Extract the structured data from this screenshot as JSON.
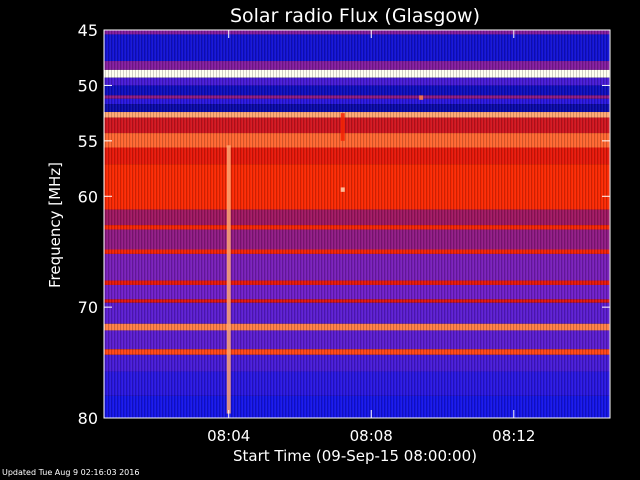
{
  "chart_data": {
    "type": "heatmap",
    "title": "Solar radio Flux (Glasgow)",
    "xlabel": "Start Time (09-Sep-15 08:00:00)",
    "ylabel": "Frequency [MHz]",
    "x_unit": "minutes after 08:00",
    "xlim": [
      0,
      14.2
    ],
    "ylim": [
      45,
      80
    ],
    "x_ticks": [
      {
        "value": 3.5,
        "label": "08:04"
      },
      {
        "value": 7.5,
        "label": "08:08"
      },
      {
        "value": 11.5,
        "label": "08:12"
      }
    ],
    "y_ticks": [
      {
        "value": 45,
        "label": "45"
      },
      {
        "value": 50,
        "label": "50"
      },
      {
        "value": 55,
        "label": "55"
      },
      {
        "value": 60,
        "label": "60"
      },
      {
        "value": 70,
        "label": "70"
      },
      {
        "value": 80,
        "label": "80"
      }
    ],
    "bands": [
      {
        "from": 45.0,
        "to": 45.4,
        "intensity": 0.35
      },
      {
        "from": 45.4,
        "to": 47.8,
        "intensity": 0.1
      },
      {
        "from": 47.8,
        "to": 48.6,
        "intensity": 0.35
      },
      {
        "from": 48.6,
        "to": 49.3,
        "intensity": 1.0
      },
      {
        "from": 49.3,
        "to": 50.0,
        "intensity": 0.22
      },
      {
        "from": 50.0,
        "to": 50.9,
        "intensity": 0.08
      },
      {
        "from": 50.9,
        "to": 51.2,
        "intensity": 0.38
      },
      {
        "from": 51.2,
        "to": 51.7,
        "intensity": 0.16
      },
      {
        "from": 51.7,
        "to": 52.4,
        "intensity": 0.06
      },
      {
        "from": 52.4,
        "to": 52.9,
        "intensity": 0.9
      },
      {
        "from": 52.9,
        "to": 54.3,
        "intensity": 0.55
      },
      {
        "from": 54.3,
        "to": 55.6,
        "intensity": 0.82
      },
      {
        "from": 55.6,
        "to": 57.1,
        "intensity": 0.62
      },
      {
        "from": 57.1,
        "to": 61.2,
        "intensity": 0.72
      },
      {
        "from": 61.2,
        "to": 62.6,
        "intensity": 0.42
      },
      {
        "from": 62.6,
        "to": 63.0,
        "intensity": 0.7
      },
      {
        "from": 63.0,
        "to": 64.8,
        "intensity": 0.38
      },
      {
        "from": 64.8,
        "to": 65.2,
        "intensity": 0.68
      },
      {
        "from": 65.2,
        "to": 67.6,
        "intensity": 0.32
      },
      {
        "from": 67.6,
        "to": 68.0,
        "intensity": 0.62
      },
      {
        "from": 68.0,
        "to": 69.3,
        "intensity": 0.3
      },
      {
        "from": 69.3,
        "to": 69.6,
        "intensity": 0.6
      },
      {
        "from": 69.6,
        "to": 71.5,
        "intensity": 0.26
      },
      {
        "from": 71.5,
        "to": 72.1,
        "intensity": 0.85
      },
      {
        "from": 72.1,
        "to": 73.8,
        "intensity": 0.26
      },
      {
        "from": 73.8,
        "to": 74.3,
        "intensity": 0.78
      },
      {
        "from": 74.3,
        "to": 75.8,
        "intensity": 0.22
      },
      {
        "from": 75.8,
        "to": 78.0,
        "intensity": 0.16
      },
      {
        "from": 78.0,
        "to": 80.0,
        "intensity": 0.12
      }
    ],
    "bursts": [
      {
        "x": 3.5,
        "y_from": 55.4,
        "y_to": 79.6,
        "intensity": 0.9
      },
      {
        "x": 6.7,
        "y_from": 52.5,
        "y_to": 55.0,
        "intensity": 0.7
      },
      {
        "x": 6.7,
        "y_from": 59.2,
        "y_to": 59.6,
        "intensity": 0.95
      },
      {
        "x": 8.9,
        "y_from": 50.9,
        "y_to": 51.3,
        "intensity": 0.85
      }
    ],
    "colormap": "blue-red-white",
    "grid": false,
    "legend": "none"
  },
  "footer": {
    "text": "Updated Tue Aug  9 02:16:03 2016"
  }
}
